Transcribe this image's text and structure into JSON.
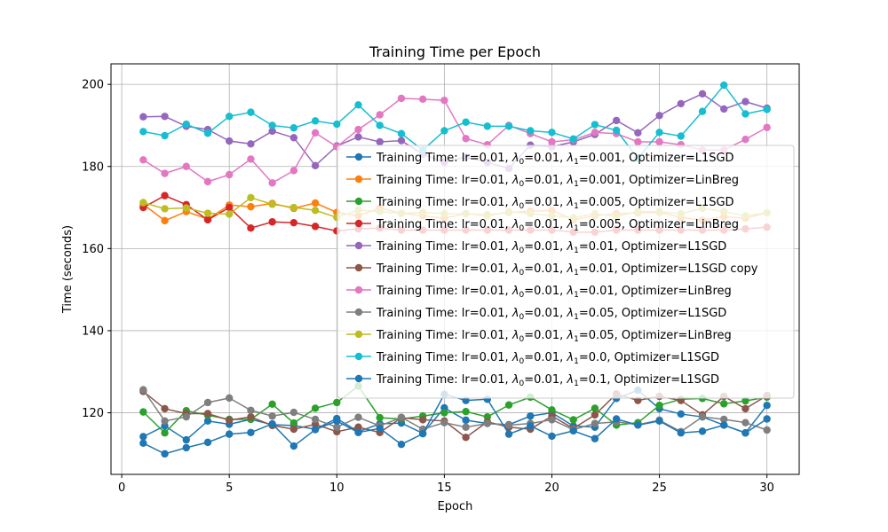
{
  "chart_data": {
    "type": "line",
    "title": "Training Time per Epoch",
    "xlabel": "Epoch",
    "ylabel": "Time (seconds)",
    "xlim": [
      -0.5,
      31.5
    ],
    "ylim": [
      105,
      205
    ],
    "xticks": [
      0,
      5,
      10,
      15,
      20,
      25,
      30
    ],
    "yticks": [
      120,
      140,
      160,
      180,
      200
    ],
    "grid": true,
    "legend_position": "center-right",
    "x": [
      1,
      2,
      3,
      4,
      5,
      6,
      7,
      8,
      9,
      10,
      11,
      12,
      13,
      14,
      15,
      16,
      17,
      18,
      19,
      20,
      21,
      22,
      23,
      24,
      25,
      26,
      27,
      28,
      29,
      30
    ],
    "series": [
      {
        "name": "Training Time: lr=0.01, λ0=0.01, λ1=0.001, Optimizer=L1SGD",
        "name_parts": {
          "pre": "Training Time: lr=0.01, ",
          "l0": "=0.01, ",
          "l1": "=0.001, Optimizer=L1SGD"
        },
        "color": "#1f77b4",
        "values": [
          114.2,
          116.8,
          113.4,
          118.0,
          117.2,
          118.4,
          117.1,
          116.9,
          116.0,
          118.6,
          115.4,
          117.3,
          117.5,
          115.0,
          121.2,
          118.2,
          117.4,
          117.1,
          119.2,
          120.0,
          116.8,
          116.5,
          123.5,
          125.5,
          121.0,
          119.7,
          119.0,
          117.0,
          115.1,
          121.8
        ]
      },
      {
        "name": "Training Time: lr=0.01, λ0=0.01, λ1=0.001, Optimizer=LinBreg",
        "name_parts": {
          "pre": "Training Time: lr=0.01, ",
          "l0": "=0.01, ",
          "l1": "=0.001, Optimizer=LinBreg"
        },
        "color": "#ff7f0e",
        "values": [
          170.8,
          166.8,
          169.0,
          167.2,
          170.6,
          170.2,
          171.0,
          169.8,
          171.1,
          168.8,
          168.0,
          169.9,
          168.6,
          168.0,
          167.4,
          168.5,
          168.2,
          168.8,
          169.1,
          169.3,
          167.0,
          168.0,
          168.5,
          168.7,
          168.8,
          167.6,
          166.9,
          167.8,
          167.4,
          168.7
        ]
      },
      {
        "name": "Training Time: lr=0.01, λ0=0.01, λ1=0.005, Optimizer=L1SGD",
        "name_parts": {
          "pre": "Training Time: lr=0.01, ",
          "l0": "=0.01, ",
          "l1": "=0.005, Optimizer=L1SGD"
        },
        "color": "#2ca02c",
        "values": [
          120.2,
          115.1,
          120.5,
          119.4,
          118.4,
          118.4,
          122.1,
          117.5,
          121.1,
          122.5,
          126.5,
          118.8,
          118.5,
          119.2,
          120.0,
          120.3,
          119.0,
          121.9,
          123.8,
          120.7,
          118.3,
          121.1,
          117.0,
          117.6,
          121.8,
          123.3,
          123.5,
          122.2,
          122.9,
          123.8
        ]
      },
      {
        "name": "Training Time: lr=0.01, λ0=0.01, λ1=0.005, Optimizer=LinBreg",
        "name_parts": {
          "pre": "Training Time: lr=0.01, ",
          "l0": "=0.01, ",
          "l1": "=0.005, Optimizer=LinBreg"
        },
        "color": "#d62728",
        "values": [
          170.0,
          172.9,
          170.7,
          167.0,
          170.0,
          165.0,
          166.5,
          166.3,
          165.4,
          164.3,
          164.8,
          165.0,
          164.5,
          164.5,
          164.5,
          164.5,
          164.5,
          164.5,
          164.5,
          164.5,
          164.0,
          164.0,
          164.5,
          164.5,
          164.5,
          164.5,
          164.5,
          164.5,
          164.8,
          165.2
        ]
      },
      {
        "name": "Training Time: lr=0.01, λ0=0.01, λ1=0.01, Optimizer=L1SGD",
        "name_parts": {
          "pre": "Training Time: lr=0.01, ",
          "l0": "=0.01, ",
          "l1": "=0.01, Optimizer=L1SGD"
        },
        "color": "#9467bd",
        "values": [
          192.1,
          192.2,
          189.8,
          189.0,
          186.2,
          185.5,
          188.6,
          187.0,
          180.2,
          185.0,
          187.2,
          186.0,
          186.3,
          183.0,
          181.0,
          182.3,
          181.0,
          179.5,
          185.2,
          184.8,
          186.0,
          187.8,
          191.2,
          188.2,
          192.4,
          195.3,
          197.7,
          194.0,
          195.8,
          194.2
        ]
      },
      {
        "name": "Training Time: lr=0.01, λ0=0.01, λ1=0.01, Optimizer=L1SGD copy",
        "name_parts": {
          "pre": "Training Time: lr=0.01, ",
          "l0": "=0.01, ",
          "l1": "=0.01, Optimizer=L1SGD copy"
        },
        "color": "#8c564b",
        "values": [
          125.2,
          121.0,
          119.8,
          119.8,
          118.2,
          119.0,
          116.9,
          116.0,
          117.2,
          115.4,
          116.5,
          115.2,
          118.8,
          118.3,
          118.0,
          114.0,
          117.8,
          116.5,
          116.0,
          119.2,
          116.2,
          119.5,
          124.6,
          123.0,
          124.0,
          123.0,
          119.5,
          124.0,
          121.0,
          124.2
        ]
      },
      {
        "name": "Training Time: lr=0.01, λ0=0.01, λ1=0.01, Optimizer=LinBreg",
        "name_parts": {
          "pre": "Training Time: lr=0.01, ",
          "l0": "=0.01, ",
          "l1": "=0.01, Optimizer=LinBreg"
        },
        "color": "#e377c2",
        "values": [
          181.6,
          178.3,
          180.0,
          176.3,
          178.0,
          181.8,
          176.0,
          179.0,
          188.2,
          184.8,
          189.0,
          192.6,
          196.6,
          196.4,
          196.1,
          186.8,
          185.3,
          190.0,
          188.0,
          186.0,
          186.5,
          188.3,
          188.0,
          186.0,
          186.0,
          185.3,
          184.0,
          184.0,
          186.6,
          189.5
        ]
      },
      {
        "name": "Training Time: lr=0.01, λ0=0.01, λ1=0.05, Optimizer=L1SGD",
        "name_parts": {
          "pre": "Training Time: lr=0.01, ",
          "l0": "=0.01, ",
          "l1": "=0.05, Optimizer=L1SGD"
        },
        "color": "#7f7f7f",
        "values": [
          125.6,
          118.0,
          119.0,
          122.5,
          123.6,
          120.6,
          119.2,
          120.1,
          118.4,
          116.5,
          118.9,
          116.8,
          118.9,
          116.0,
          117.6,
          116.5,
          117.4,
          117.0,
          117.4,
          118.3,
          115.9,
          117.4,
          117.8,
          117.1,
          118.2,
          115.4,
          119.0,
          118.4,
          117.6,
          115.8
        ]
      },
      {
        "name": "Training Time: lr=0.01, λ0=0.01, λ1=0.05, Optimizer=LinBreg",
        "name_parts": {
          "pre": "Training Time: lr=0.01, ",
          "l0": "=0.01, ",
          "l1": "=0.05, Optimizer=LinBreg"
        },
        "color": "#bcbd22",
        "values": [
          171.2,
          169.7,
          169.9,
          168.6,
          168.4,
          172.4,
          170.8,
          170.0,
          169.3,
          167.6,
          169.4,
          169.0,
          168.6,
          168.8,
          168.5,
          168.5,
          168.0,
          169.0,
          168.5,
          168.0,
          167.5,
          168.5,
          167.8,
          169.0,
          169.0,
          168.5,
          169.8,
          169.0,
          168.0,
          168.7
        ]
      },
      {
        "name": "Training Time: lr=0.01, λ0=0.01, λ1=0.0, Optimizer=L1SGD",
        "name_parts": {
          "pre": "Training Time: lr=0.01, ",
          "l0": "=0.01, ",
          "l1": "=0.0, Optimizer=L1SGD"
        },
        "color": "#17becf",
        "values": [
          188.5,
          187.5,
          190.3,
          188.1,
          192.2,
          193.2,
          190.0,
          189.4,
          191.1,
          190.3,
          195.0,
          190.0,
          188.0,
          184.0,
          188.7,
          190.8,
          189.8,
          189.8,
          188.7,
          188.3,
          186.7,
          190.2,
          188.8,
          182.0,
          188.3,
          187.4,
          193.4,
          199.8,
          192.8,
          193.9
        ]
      },
      {
        "name": "Training Time: lr=0.01, λ0=0.01, λ1=0.1, Optimizer=L1SGD",
        "name_parts": {
          "pre": "Training Time: lr=0.01, ",
          "l0": "=0.01, ",
          "l1": "=0.1, Optimizer=L1SGD"
        },
        "color": "#1f77b4",
        "values": [
          112.6,
          110.0,
          111.5,
          112.8,
          114.8,
          115.2,
          117.3,
          111.9,
          115.9,
          118.0,
          115.2,
          116.2,
          112.3,
          114.9,
          124.5,
          123.0,
          123.3,
          114.8,
          116.8,
          114.3,
          115.6,
          113.7,
          118.5,
          117.0,
          118.0,
          115.1,
          115.5,
          117.0,
          115.1,
          118.5
        ]
      }
    ]
  }
}
